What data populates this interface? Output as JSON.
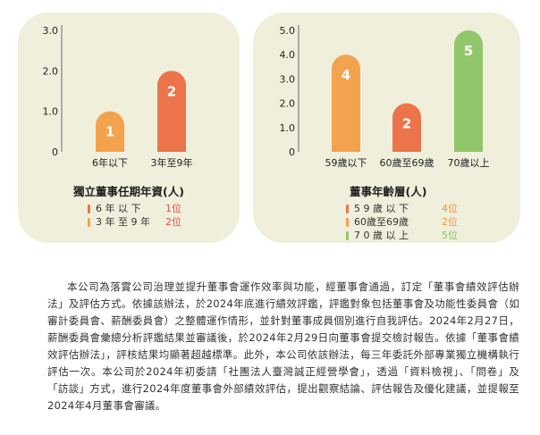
{
  "chart_data": [
    {
      "type": "bar",
      "title": "獨立董事任期年資(人)",
      "categories": [
        "6年以下",
        "3年至9年"
      ],
      "values": [
        1,
        2
      ],
      "data_labels": [
        "1",
        "2"
      ],
      "colors": [
        "#f3a24e",
        "#ec744b"
      ],
      "yticks": [
        "0",
        "1.0",
        "2.0",
        "3.0"
      ],
      "ylim": [
        0,
        3
      ],
      "grid": false,
      "legend": [
        {
          "label": "6 年 以 下",
          "value": "1位",
          "color": "#ec744b",
          "value_color": "#e5513b"
        },
        {
          "label": "3 年 至 9 年",
          "value": "2位",
          "color": "#f3a24e",
          "value_color": "#e5513b"
        }
      ]
    },
    {
      "type": "bar",
      "title": "董事年齡層(人)",
      "categories": [
        "59歲以下",
        "60歲至69歲",
        "70歲以上"
      ],
      "values": [
        4,
        2,
        5
      ],
      "data_labels": [
        "4",
        "2",
        "5"
      ],
      "colors": [
        "#f3a24e",
        "#ec744b",
        "#92c66a"
      ],
      "yticks": [
        "0",
        "1.0",
        "2.0",
        "3.0",
        "4.0",
        "5.0"
      ],
      "ylim": [
        0,
        5
      ],
      "grid": false,
      "legend": [
        {
          "label": "5 9 歲 以 下",
          "value": "4位",
          "color": "#ec744b",
          "value_color": "#f0973f"
        },
        {
          "label": "60歲至69歲",
          "value": "2位",
          "color": "#f3a24e",
          "value_color": "#f0973f"
        },
        {
          "label": "7 0 歲 以 上",
          "value": "5位",
          "color": "#92c66a",
          "value_color": "#8cc460"
        }
      ]
    }
  ],
  "paragraph": "本公司為落實公司治理並提升董事會運作效率與功能，經董事會通過，訂定「董事會績效評估辦法」及評估方式。依據該辦法，於2024年底進行績效評鑑，評鑑對象包括董事會及功能性委員會（如審計委員會、薪酬委員會）之整體運作情形，並針對董事成員個別進行自我評估。2024年2月27日，薪酬委員會彙總分析評鑑結果並審議後，於2024年2月29日向董事會提交檢討報告。依據「董事會績效評估辦法」，評核結果均顯著超越標準。此外，本公司依該辦法，每三年委託外部專業獨立機構執行評估一次。本公司於2024年初委請「社團法人臺灣誠正經營學會」，透過「資料檢視」、「問卷」及「訪談」方式，進行2024年度董事會外部績效評估，提出觀察結論、評估報告及優化建議，並提報至2024年4月董事會審議。"
}
